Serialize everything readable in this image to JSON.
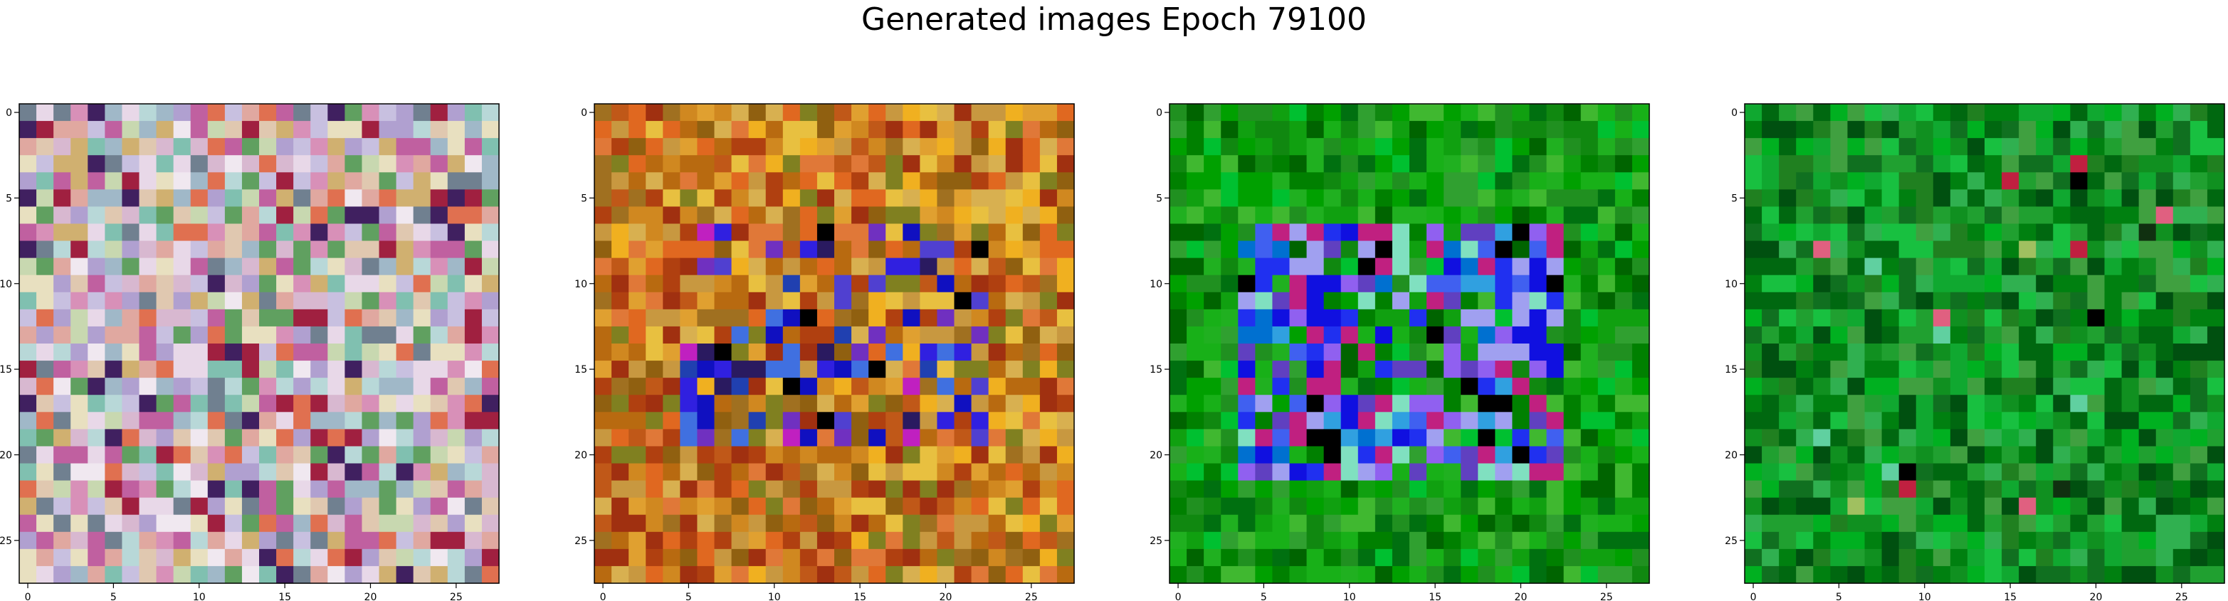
{
  "figure": {
    "title": "Generated images Epoch 79100"
  },
  "chart_data": [
    {
      "type": "heatmap",
      "grid_size": [
        28,
        28
      ],
      "palette_name": "pastel-mixed",
      "palette": [
        "#d8b8d0",
        "#c8c0e0",
        "#e0c8b0",
        "#b8d8d8",
        "#e8d8e8",
        "#a0b8c8",
        "#d890b8",
        "#c8d8b0",
        "#e0a8a0",
        "#b0a0d0",
        "#f0e8f0",
        "#80c0b0",
        "#d0b070",
        "#c060a0",
        "#708090",
        "#e07050",
        "#402060",
        "#a02040",
        "#60a060",
        "#e8e0c0"
      ],
      "pattern": "random",
      "xlim": [
        -0.5,
        27.5
      ],
      "ylim": [
        27.5,
        -0.5
      ],
      "x_ticks": [
        0,
        5,
        10,
        15,
        20,
        25
      ],
      "y_ticks": [
        0,
        5,
        10,
        15,
        20,
        25
      ]
    },
    {
      "type": "heatmap",
      "grid_size": [
        28,
        28
      ],
      "palette_name": "orange-brown",
      "palette": [
        "#d08820",
        "#b86a10",
        "#e0a030",
        "#c05818",
        "#a07020",
        "#e8c040",
        "#906010",
        "#c89840",
        "#e06820",
        "#b04010",
        "#d8b050",
        "#f0b020",
        "#808020",
        "#a03010",
        "#e07838"
      ],
      "accent_palette": [
        "#3020e0",
        "#1010c0",
        "#5040d0",
        "#7030c0",
        "#2040b0",
        "#c020c0",
        "#4070e0",
        "#000000",
        "#2a1a60"
      ],
      "pattern": "central-blob",
      "xlim": [
        -0.5,
        27.5
      ],
      "ylim": [
        27.5,
        -0.5
      ],
      "x_ticks": [
        0,
        5,
        10,
        15,
        20,
        25
      ],
      "y_ticks": [
        0,
        5,
        10,
        15,
        20,
        25
      ]
    },
    {
      "type": "heatmap",
      "grid_size": [
        28,
        28
      ],
      "palette_name": "green",
      "palette": [
        "#10a010",
        "#008000",
        "#20b020",
        "#006400",
        "#30a030",
        "#00a000",
        "#108810",
        "#40b830",
        "#007010",
        "#209020",
        "#00c030",
        "#18b018"
      ],
      "accent_palette": [
        "#2030f0",
        "#1010e0",
        "#4060f0",
        "#9060f0",
        "#0070d0",
        "#a0a0f0",
        "#000000",
        "#80e0c0",
        "#6040c0",
        "#c02080",
        "#30a0e0"
      ],
      "pattern": "ring",
      "xlim": [
        -0.5,
        27.5
      ],
      "ylim": [
        27.5,
        -0.5
      ],
      "x_ticks": [
        0,
        5,
        10,
        15,
        20,
        25
      ],
      "y_ticks": [
        0,
        5,
        10,
        15,
        20,
        25
      ]
    },
    {
      "type": "heatmap",
      "grid_size": [
        28,
        28
      ],
      "palette_name": "dark-green",
      "palette": [
        "#109020",
        "#008010",
        "#20a030",
        "#006810",
        "#10a830",
        "#208020",
        "#00b020",
        "#30b050",
        "#005010",
        "#18c040",
        "#107020",
        "#40a040"
      ],
      "accent_palette": [
        "#000000",
        "#103010",
        "#60d0a0",
        "#a0c060",
        "#c02040",
        "#e06080"
      ],
      "pattern": "sparse-accents",
      "xlim": [
        -0.5,
        27.5
      ],
      "ylim": [
        27.5,
        -0.5
      ],
      "x_ticks": [
        0,
        5,
        10,
        15,
        20,
        25
      ],
      "y_ticks": [
        0,
        5,
        10,
        15,
        20,
        25
      ]
    }
  ]
}
